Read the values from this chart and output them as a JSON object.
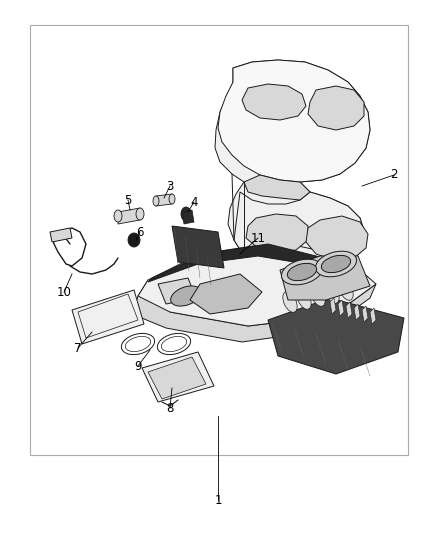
{
  "background_color": "#ffffff",
  "border_color": "#888888",
  "figure_width": 4.38,
  "figure_height": 5.33,
  "dpi": 100,
  "line_color": "#1a1a1a",
  "fill_light": "#f0f0f0",
  "fill_mid": "#d8d8d8",
  "fill_dark": "#909090",
  "fill_black": "#2a2a2a",
  "label_font_size": 8.5
}
